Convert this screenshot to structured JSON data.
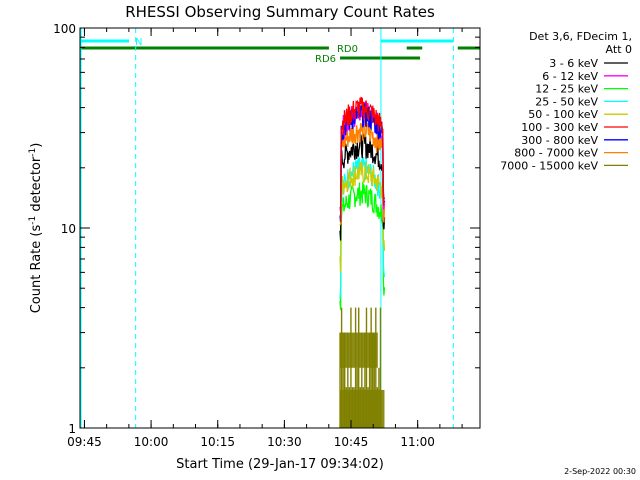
{
  "chart_data": {
    "type": "line",
    "title": "RHESSI Observing Summary Count Rates",
    "xlabel": "Start Time (29-Jan-17 09:34:02)",
    "ylabel_main": "Count Rate (s",
    "ylabel_exp1": "-1",
    "ylabel_mid": " detector",
    "ylabel_exp2": "-1",
    "ylabel_end": ")",
    "yscale": "log",
    "ylim": [
      1,
      100
    ],
    "xlim_minutes": [
      9.97,
      100.0
    ],
    "x_ticks": [
      {
        "label": "09:45",
        "minutes": 10.97
      },
      {
        "label": "10:00",
        "minutes": 25.97
      },
      {
        "label": "10:15",
        "minutes": 40.97
      },
      {
        "label": "10:30",
        "minutes": 55.97
      },
      {
        "label": "10:45",
        "minutes": 70.97
      },
      {
        "label": "11:00",
        "minutes": 85.97
      }
    ],
    "y_ticks": [
      {
        "label": "1",
        "value": 1
      },
      {
        "label": "10",
        "value": 10
      },
      {
        "label": "100",
        "value": 100
      }
    ],
    "legend_header": [
      "Det 3,6, FDecim 1,",
      "Att 0"
    ],
    "legend_position": "right",
    "series": [
      {
        "name": "3 - 6 keV",
        "color": "#000000",
        "peak": 26,
        "floor": 16
      },
      {
        "name": "6 - 12 keV",
        "color": "#ff00ff",
        "peak": 38,
        "floor": 21
      },
      {
        "name": "12 - 25 keV",
        "color": "#00ff00",
        "peak": 15,
        "floor": 8
      },
      {
        "name": "25 - 50 keV",
        "color": "#00ffff",
        "peak": 20,
        "floor": 9
      },
      {
        "name": "50 - 100 keV",
        "color": "#cccc00",
        "peak": 19,
        "floor": 12
      },
      {
        "name": "100 - 300 keV",
        "color": "#ff0000",
        "peak": 40,
        "floor": 22
      },
      {
        "name": "300 - 800 keV",
        "color": "#0000ff",
        "peak": 37,
        "floor": 22
      },
      {
        "name": "800 - 7000 keV",
        "color": "#ff8000",
        "peak": 31,
        "floor": 19
      },
      {
        "name": "7000 - 15000 keV",
        "color": "#808000",
        "peak": 3,
        "floor": 1
      }
    ],
    "data_window_minutes": [
      68.5,
      78.5
    ],
    "markers": [
      {
        "type": "dashed-vline",
        "color": "#00ffff",
        "minutes": 22.5
      },
      {
        "type": "solid-vline",
        "color": "#00ffff",
        "minutes": 77.7
      },
      {
        "type": "dashed-vline",
        "color": "#00ffff",
        "minutes": 94.0
      }
    ],
    "bars": [
      {
        "label": "N",
        "color": "#00ffff",
        "segments": [
          [
            10.0,
            21.0
          ],
          [
            77.7,
            94.0
          ]
        ],
        "level": 0
      },
      {
        "label": "RD0",
        "color": "#008000",
        "segments": [
          [
            10.0,
            66.0
          ],
          [
            83.5,
            87.0
          ],
          [
            95.0,
            100.0
          ]
        ],
        "level": 1
      },
      {
        "label": "RD6",
        "color": "#008000",
        "segments": [
          [
            68.5,
            86.5
          ]
        ],
        "level": 2
      }
    ]
  },
  "footer_timestamp": "2-Sep-2022 00:30"
}
